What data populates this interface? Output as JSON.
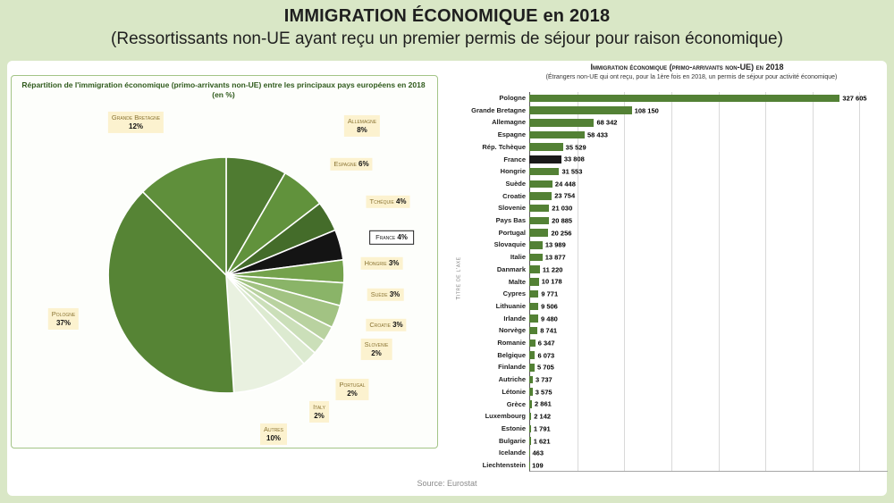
{
  "page": {
    "title_line1": "IMMIGRATION ÉCONOMIQUE en 2018",
    "title_line2": "(Ressortissants non-UE ayant reçu un premier permis de séjour pour raison économique)",
    "source": "Source: Eurostat"
  },
  "chart_data": [
    {
      "type": "pie",
      "title": "Répartition de l'immigration économique (primo-arrivants non-UE) entre les principaux pays européens en 2018 (en %)",
      "slices": [
        {
          "label": "Allemagne",
          "pct": 8,
          "pct_label": "8%",
          "color": "#4f7b31"
        },
        {
          "label": "Espagne",
          "pct": 6,
          "pct_label": "6%",
          "color": "#61923c"
        },
        {
          "label": "Tchéquie",
          "pct": 4,
          "pct_label": "4%",
          "color": "#446c2a"
        },
        {
          "label": "France",
          "pct": 4,
          "pct_label": "4%",
          "color": "#141414",
          "highlight": true
        },
        {
          "label": "Hongrie",
          "pct": 3,
          "pct_label": "3%",
          "color": "#74a24c"
        },
        {
          "label": "Suède",
          "pct": 3,
          "pct_label": "3%",
          "color": "#8ab468"
        },
        {
          "label": "Croatie",
          "pct": 3,
          "pct_label": "3%",
          "color": "#a2c383"
        },
        {
          "label": "Slovenie",
          "pct": 2,
          "pct_label": "2%",
          "color": "#b9d2a0"
        },
        {
          "label": "Portugal",
          "pct": 2,
          "pct_label": "2%",
          "color": "#cbdfb9"
        },
        {
          "label": "Italy",
          "pct": 2,
          "pct_label": "2%",
          "color": "#dcead0"
        },
        {
          "label": "Autres",
          "pct": 10,
          "pct_label": "10%",
          "color": "#e9f1e0"
        },
        {
          "label": "Pologne",
          "pct": 37,
          "pct_label": "37%",
          "color": "#568435"
        },
        {
          "label": "Grande Bretagne",
          "pct": 12,
          "pct_label": "12%",
          "color": "#5f8f3b"
        }
      ]
    },
    {
      "type": "bar",
      "orientation": "horizontal",
      "title": "Immigration économique (primo-arrivants non-UE) en 2018",
      "subtitle": "(Étrangers non-UE qui ont reçu, pour la 1ère fois en 2018, un permis de séjour pour activité économique)",
      "ylabel": "Titre de l'axe",
      "xlim": [
        0,
        380000
      ],
      "gridline_step": 50000,
      "grid": true,
      "legend": false,
      "bar_color": "#538135",
      "highlight_category": "France",
      "highlight_color": "#1a1a1a",
      "categories": [
        "Pologne",
        "Grande Bretagne",
        "Allemagne",
        "Espagne",
        "Rép. Tchèque",
        "France",
        "Hongrie",
        "Suède",
        "Croatie",
        "Slovenie",
        "Pays Bas",
        "Portugal",
        "Slovaquie",
        "Italie",
        "Danmark",
        "Malte",
        "Cypres",
        "Lithuanie",
        "Irlande",
        "Norvège",
        "Romanie",
        "Belgique",
        "Finlande",
        "Autriche",
        "Létonie",
        "Grèce",
        "Luxembourg",
        "Estonie",
        "Bulgarie",
        "Icelande",
        "Liechtenstein"
      ],
      "values": [
        327605,
        108150,
        68342,
        58433,
        35529,
        33808,
        31553,
        24448,
        23754,
        21030,
        20885,
        20256,
        13989,
        13877,
        11220,
        10178,
        9771,
        9506,
        9480,
        8741,
        6347,
        6073,
        5705,
        3737,
        3575,
        2861,
        2142,
        1791,
        1621,
        463,
        109
      ],
      "value_labels": [
        "327 605",
        "108 150",
        "68 342",
        "58 433",
        "35 529",
        "33 808",
        "31 553",
        "24 448",
        "23 754",
        "21 030",
        "20 885",
        "20 256",
        "13 989",
        "13 877",
        "11 220",
        "10 178",
        "9 771",
        "9 506",
        "9 480",
        "8 741",
        "6 347",
        "6 073",
        "5 705",
        "3 737",
        "3 575",
        "2 861",
        "2 142",
        "1 791",
        "1 621",
        "463",
        "109"
      ]
    }
  ]
}
